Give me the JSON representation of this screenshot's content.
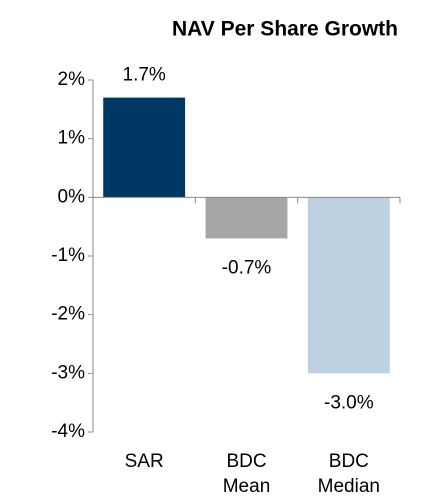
{
  "chart_data": {
    "type": "bar",
    "title": "NAV Per Share Growth",
    "categories": [
      "SAR",
      "BDC Mean",
      "BDC Median"
    ],
    "values": [
      1.7,
      -0.7,
      -3.0
    ],
    "value_labels": [
      "1.7%",
      "-0.7%",
      "-3.0%"
    ],
    "colors": [
      "#003865",
      "#a6a6a6",
      "#bdd1e2"
    ],
    "ylim": [
      -4,
      2
    ],
    "yticks": [
      {
        "value": 2,
        "label": "2%"
      },
      {
        "value": 1,
        "label": "1%"
      },
      {
        "value": 0,
        "label": "0%"
      },
      {
        "value": -1,
        "label": "-1%"
      },
      {
        "value": -2,
        "label": "-2%"
      },
      {
        "value": -3,
        "label": "-3%"
      },
      {
        "value": -4,
        "label": "-4%"
      }
    ]
  }
}
